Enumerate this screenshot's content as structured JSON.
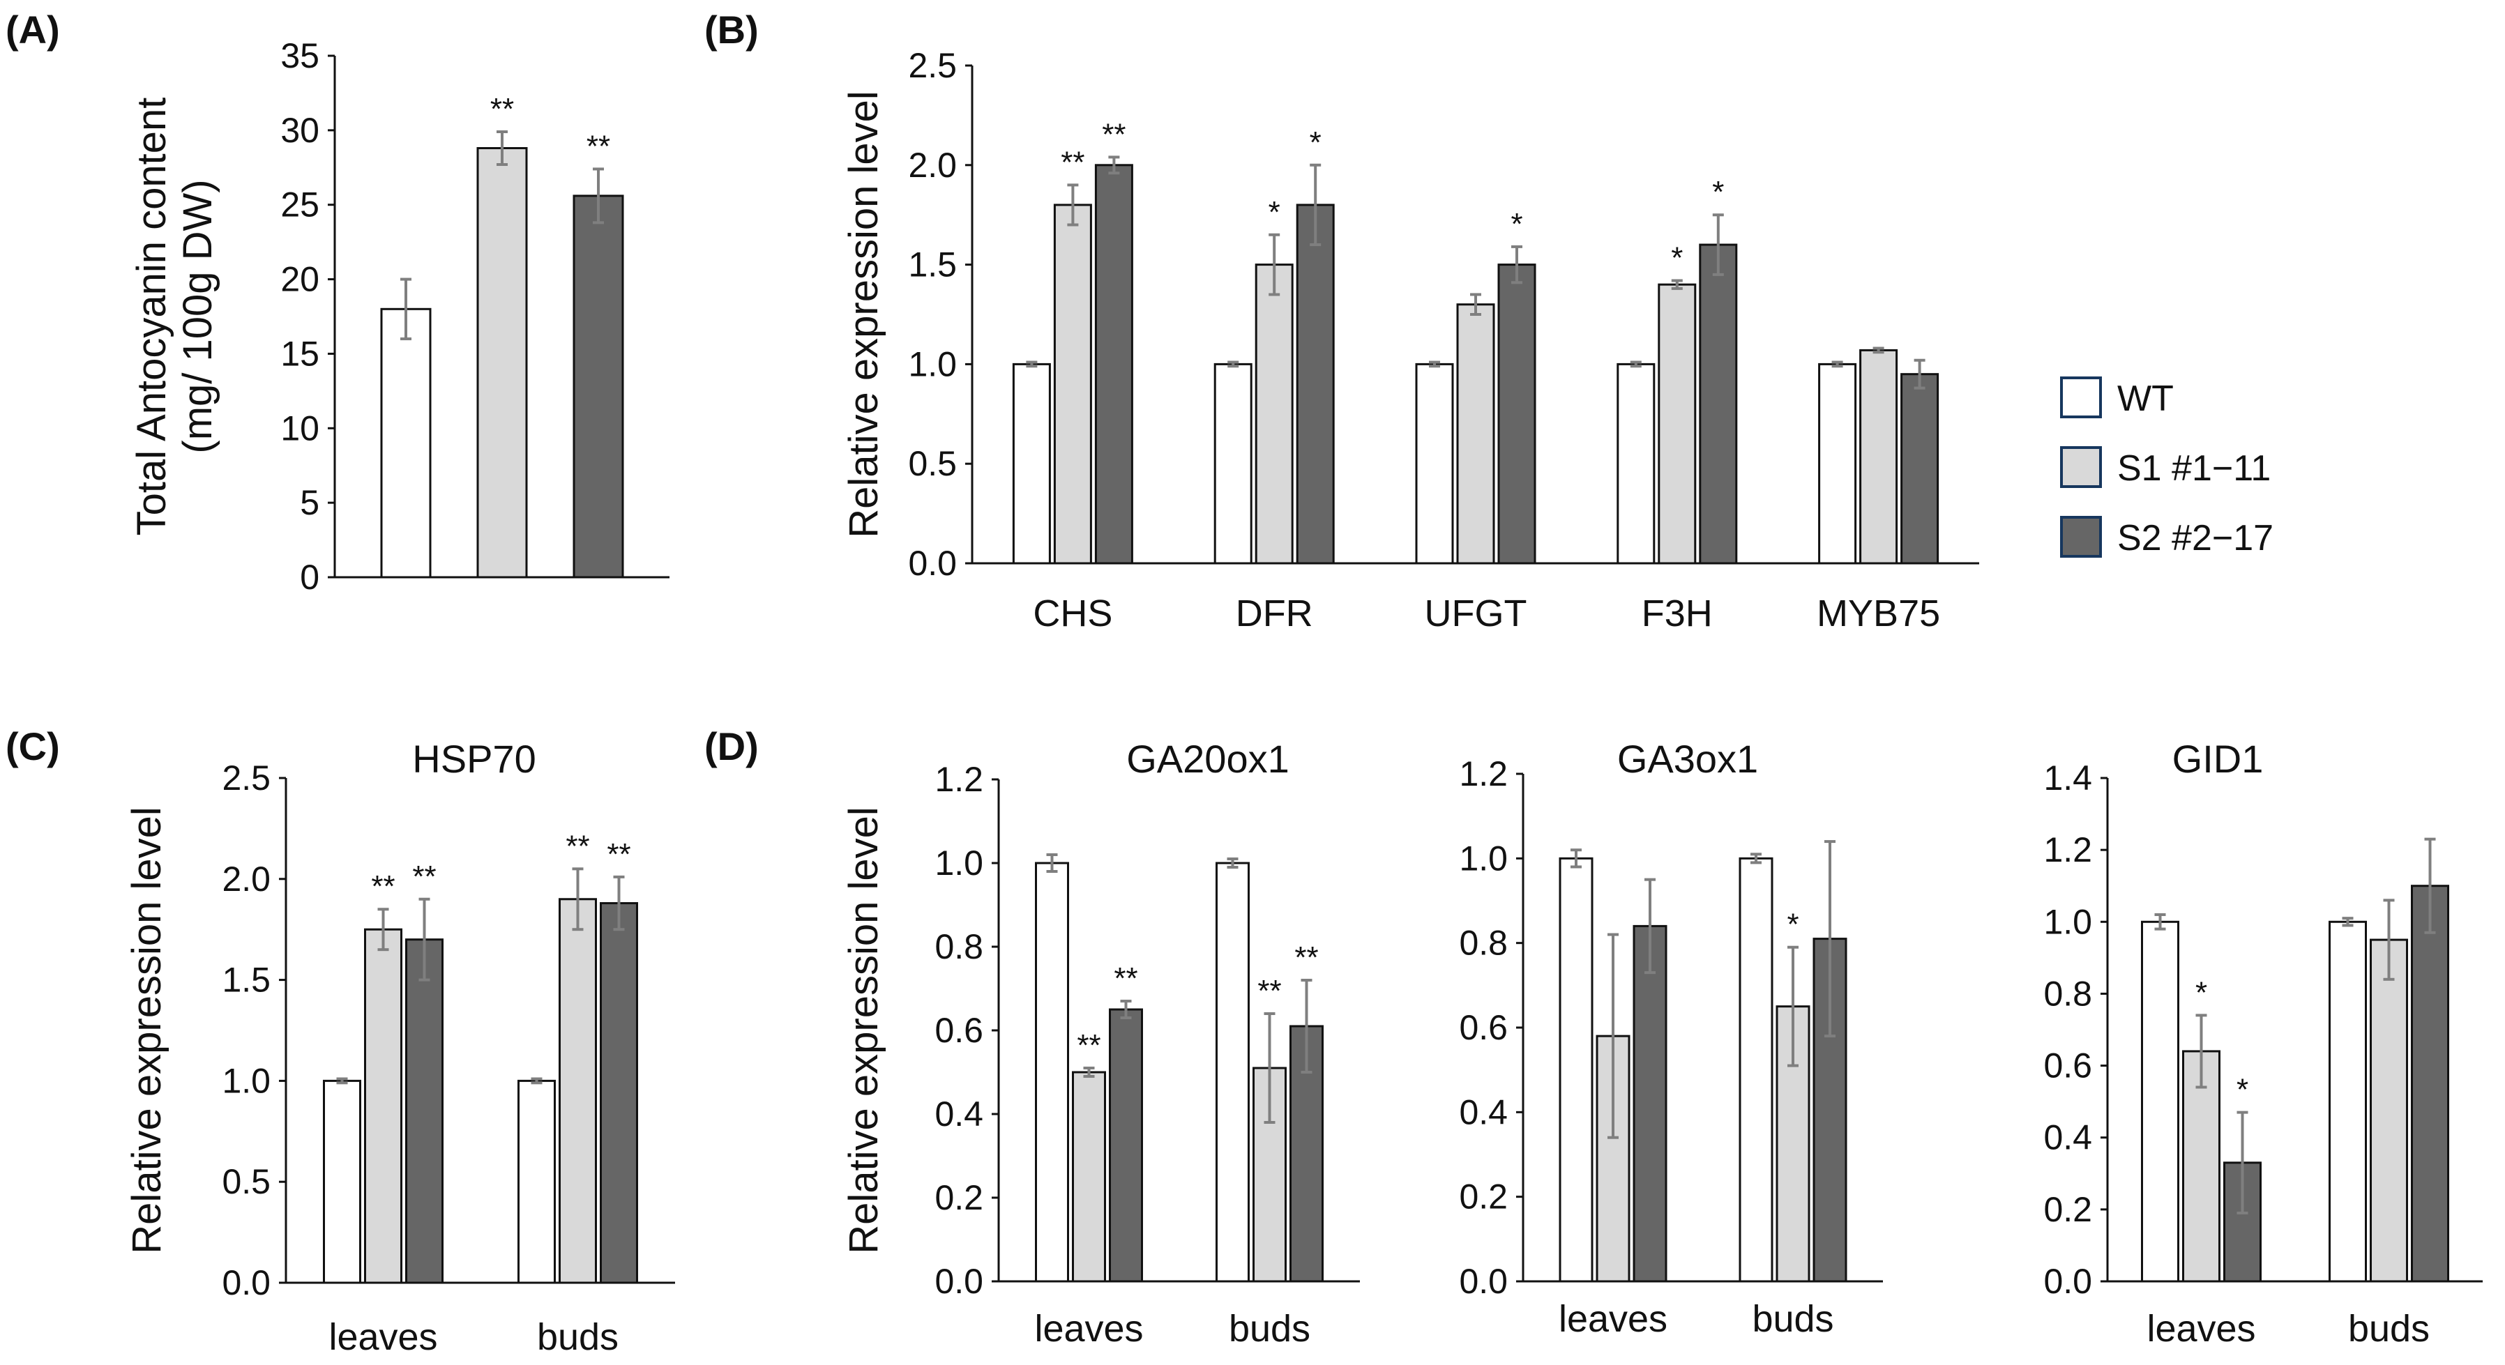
{
  "legend": {
    "entries": [
      {
        "label": "WT",
        "color": "#ffffff"
      },
      {
        "label": "S1 #1−11",
        "color": "#d9d9d9"
      },
      {
        "label": "S2 #2−17",
        "color": "#666666"
      }
    ],
    "position": "right"
  },
  "colors": {
    "wt": "#ffffff",
    "s1": "#d9d9d9",
    "s2": "#666666",
    "edge": "#111111",
    "error": "#7f7f7f"
  },
  "chart_data": [
    {
      "panel": "(A)",
      "type": "bar",
      "title": "",
      "ylabel_lines": [
        "Total Antocyanin content",
        "(mg/ 100g DW)"
      ],
      "ylim": [
        0,
        35
      ],
      "yticks": [
        "0",
        "5",
        "10",
        "15",
        "20",
        "25",
        "30",
        "35"
      ],
      "categories": [
        ""
      ],
      "series": [
        {
          "name": "WT",
          "values": [
            18
          ],
          "errors": [
            2.0
          ],
          "sig": [
            ""
          ]
        },
        {
          "name": "S1 #1−11",
          "values": [
            28.8
          ],
          "errors": [
            1.1
          ],
          "sig": [
            "**"
          ]
        },
        {
          "name": "S2 #2−17",
          "values": [
            25.6
          ],
          "errors": [
            1.8
          ],
          "sig": [
            "**"
          ]
        }
      ],
      "grid": false
    },
    {
      "panel": "(B)",
      "type": "bar",
      "title": "",
      "ylabel_lines": [
        "Relative expression level"
      ],
      "ylim": [
        0,
        2.5
      ],
      "yticks": [
        "0.0",
        "0.5",
        "1.0",
        "1.5",
        "2.0",
        "2.5"
      ],
      "categories": [
        "CHS",
        "DFR",
        "UFGT",
        "F3H",
        "MYB75"
      ],
      "series": [
        {
          "name": "WT",
          "values": [
            1.0,
            1.0,
            1.0,
            1.0,
            1.0
          ],
          "errors": [
            0.01,
            0.01,
            0.01,
            0.01,
            0.01
          ],
          "sig": [
            "",
            "",
            "",
            "",
            ""
          ]
        },
        {
          "name": "S1 #1−11",
          "values": [
            1.8,
            1.5,
            1.3,
            1.4,
            1.07
          ],
          "errors": [
            0.1,
            0.15,
            0.05,
            0.02,
            0.01
          ],
          "sig": [
            "**",
            "*",
            "",
            "*",
            ""
          ]
        },
        {
          "name": "S2 #2−17",
          "values": [
            2.0,
            1.8,
            1.5,
            1.6,
            0.95
          ],
          "errors": [
            0.04,
            0.2,
            0.09,
            0.15,
            0.07
          ],
          "sig": [
            "**",
            "*",
            "*",
            "*",
            ""
          ]
        }
      ],
      "grid": false
    },
    {
      "panel": "(C)",
      "type": "bar",
      "title": "HSP70",
      "ylabel_lines": [
        "Relative expression level"
      ],
      "ylim": [
        0,
        2.5
      ],
      "yticks": [
        "0.0",
        "0.5",
        "1.0",
        "1.5",
        "2.0",
        "2.5"
      ],
      "categories": [
        "leaves",
        "buds"
      ],
      "series": [
        {
          "name": "WT",
          "values": [
            1.0,
            1.0
          ],
          "errors": [
            0.01,
            0.01
          ],
          "sig": [
            "",
            ""
          ]
        },
        {
          "name": "S1 #1−11",
          "values": [
            1.75,
            1.9
          ],
          "errors": [
            0.1,
            0.15
          ],
          "sig": [
            "**",
            "**"
          ]
        },
        {
          "name": "S2 #2−17",
          "values": [
            1.7,
            1.88
          ],
          "errors": [
            0.2,
            0.13
          ],
          "sig": [
            "**",
            "**"
          ]
        }
      ],
      "grid": false
    },
    {
      "panel": "(D)",
      "type": "bar",
      "title": "GA20ox1",
      "ylabel_lines": [
        "Relative expression level"
      ],
      "ylim": [
        0,
        1.2
      ],
      "yticks": [
        "0.0",
        "0.2",
        "0.4",
        "0.6",
        "0.8",
        "1.0",
        "1.2"
      ],
      "categories": [
        "leaves",
        "buds"
      ],
      "series": [
        {
          "name": "WT",
          "values": [
            1.0,
            1.0
          ],
          "errors": [
            0.02,
            0.01
          ],
          "sig": [
            "",
            ""
          ]
        },
        {
          "name": "S1 #1−11",
          "values": [
            0.5,
            0.51
          ],
          "errors": [
            0.01,
            0.13
          ],
          "sig": [
            "**",
            "**"
          ]
        },
        {
          "name": "S2 #2−17",
          "values": [
            0.65,
            0.61
          ],
          "errors": [
            0.02,
            0.11
          ],
          "sig": [
            "**",
            "**"
          ]
        }
      ],
      "grid": false
    },
    {
      "panel": "",
      "type": "bar",
      "title": "GA3ox1",
      "ylabel_lines": [],
      "ylim": [
        0,
        1.2
      ],
      "yticks": [
        "0.0",
        "0.2",
        "0.4",
        "0.6",
        "0.8",
        "1.0",
        "1.2"
      ],
      "categories": [
        "leaves",
        "buds"
      ],
      "series": [
        {
          "name": "WT",
          "values": [
            1.0,
            1.0
          ],
          "errors": [
            0.02,
            0.01
          ],
          "sig": [
            "",
            ""
          ]
        },
        {
          "name": "S1 #1−11",
          "values": [
            0.58,
            0.65
          ],
          "errors": [
            0.24,
            0.14
          ],
          "sig": [
            "",
            "*"
          ]
        },
        {
          "name": "S2 #2−17",
          "values": [
            0.84,
            0.81
          ],
          "errors": [
            0.11,
            0.23
          ],
          "sig": [
            "",
            ""
          ]
        }
      ],
      "grid": false
    },
    {
      "panel": "",
      "type": "bar",
      "title": "GID1",
      "ylabel_lines": [],
      "ylim": [
        0,
        1.4
      ],
      "yticks": [
        "0.0",
        "0.2",
        "0.4",
        "0.6",
        "0.8",
        "1.0",
        "1.2",
        "1.4"
      ],
      "categories": [
        "leaves",
        "buds"
      ],
      "series": [
        {
          "name": "WT",
          "values": [
            1.0,
            1.0
          ],
          "errors": [
            0.02,
            0.01
          ],
          "sig": [
            "",
            ""
          ]
        },
        {
          "name": "S1 #1−11",
          "values": [
            0.64,
            0.95
          ],
          "errors": [
            0.1,
            0.11
          ],
          "sig": [
            "*",
            ""
          ]
        },
        {
          "name": "S2 #2−17",
          "values": [
            0.33,
            1.1
          ],
          "errors": [
            0.14,
            0.13
          ],
          "sig": [
            "*",
            ""
          ]
        }
      ],
      "grid": false
    }
  ]
}
